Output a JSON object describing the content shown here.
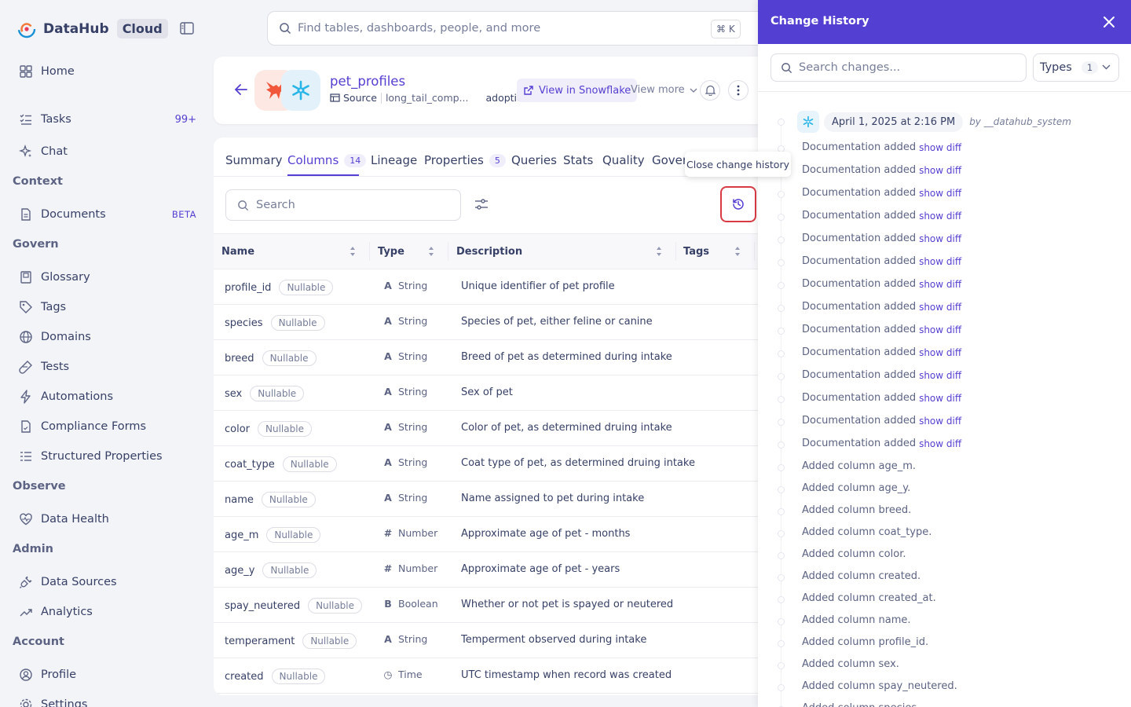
{
  "brand": {
    "name": "DataHub",
    "edition": "Cloud"
  },
  "nav": {
    "home": "Home",
    "tasks": "Tasks",
    "tasks_count": "99+",
    "chat": "Chat",
    "sections": {
      "context": "Context",
      "govern": "Govern",
      "observe": "Observe",
      "admin": "Admin",
      "account": "Account"
    },
    "documents": "Documents",
    "documents_badge": "BETA",
    "glossary": "Glossary",
    "tags": "Tags",
    "domains": "Domains",
    "tests": "Tests",
    "automations": "Automations",
    "compliance_forms": "Compliance Forms",
    "structured_properties": "Structured Properties",
    "data_health": "Data Health",
    "data_sources": "Data Sources",
    "analytics": "Analytics",
    "profile": "Profile",
    "settings": "Settings"
  },
  "search": {
    "placeholder": "Find tables, dashboards, people, and more",
    "shortcut": "⌘ K"
  },
  "entity": {
    "title": "pet_profiles",
    "type": "Source",
    "path": "long_tail_comp...",
    "schema": "adoption",
    "view_in": "View in Snowflake",
    "view_more": "View more"
  },
  "tabs": [
    {
      "label": "Summary"
    },
    {
      "label": "Columns",
      "count": "14"
    },
    {
      "label": "Lineage"
    },
    {
      "label": "Properties",
      "count": "5"
    },
    {
      "label": "Queries"
    },
    {
      "label": "Stats"
    },
    {
      "label": "Quality"
    },
    {
      "label": "Govern"
    }
  ],
  "columns_table": {
    "search_placeholder": "Search",
    "tooltip": "Close change history",
    "headers": {
      "name": "Name",
      "type": "Type",
      "description": "Description",
      "tags": "Tags"
    },
    "nullable_label": "Nullable",
    "rows": [
      {
        "name": "profile_id",
        "type": "String",
        "glyph": "A",
        "desc": "Unique identifier of pet profile"
      },
      {
        "name": "species",
        "type": "String",
        "glyph": "A",
        "desc": "Species of pet, either feline or canine"
      },
      {
        "name": "breed",
        "type": "String",
        "glyph": "A",
        "desc": "Breed of pet as determined during intake"
      },
      {
        "name": "sex",
        "type": "String",
        "glyph": "A",
        "desc": "Sex of pet"
      },
      {
        "name": "color",
        "type": "String",
        "glyph": "A",
        "desc": "Color of pet, as determined druing intake"
      },
      {
        "name": "coat_type",
        "type": "String",
        "glyph": "A",
        "desc": "Coat type of pet, as determined druing intake"
      },
      {
        "name": "name",
        "type": "String",
        "glyph": "A",
        "desc": "Name assigned to pet during intake"
      },
      {
        "name": "age_m",
        "type": "Number",
        "glyph": "#",
        "desc": "Approximate age of pet - months"
      },
      {
        "name": "age_y",
        "type": "Number",
        "glyph": "#",
        "desc": "Approximate age of pet - years"
      },
      {
        "name": "spay_neutered",
        "type": "Boolean",
        "glyph": "B",
        "desc": "Whether or not pet is spayed or neutered"
      },
      {
        "name": "temperament",
        "type": "String",
        "glyph": "A",
        "desc": "Temperment observed during intake"
      },
      {
        "name": "created",
        "type": "Time",
        "glyph": "◷",
        "desc": "UTC timestamp when record was created"
      }
    ]
  },
  "change_history": {
    "title": "Change History",
    "search_placeholder": "Search changes...",
    "types_label": "Types",
    "types_count": "1",
    "group": {
      "date": "April 1, 2025 at 2:16 PM",
      "by": "by __datahub_system"
    },
    "show_diff": "show diff",
    "entries": [
      "Documentation added",
      "Documentation added",
      "Documentation added",
      "Documentation added",
      "Documentation added",
      "Documentation added",
      "Documentation added",
      "Documentation added",
      "Documentation added",
      "Documentation added",
      "Documentation added",
      "Documentation added",
      "Documentation added",
      "Documentation added",
      "Added column age_m.",
      "Added column age_y.",
      "Added column breed.",
      "Added column coat_type.",
      "Added column color.",
      "Added column created.",
      "Added column created_at.",
      "Added column name.",
      "Added column profile_id.",
      "Added column sex.",
      "Added column spay_neutered.",
      "Added column species."
    ]
  }
}
